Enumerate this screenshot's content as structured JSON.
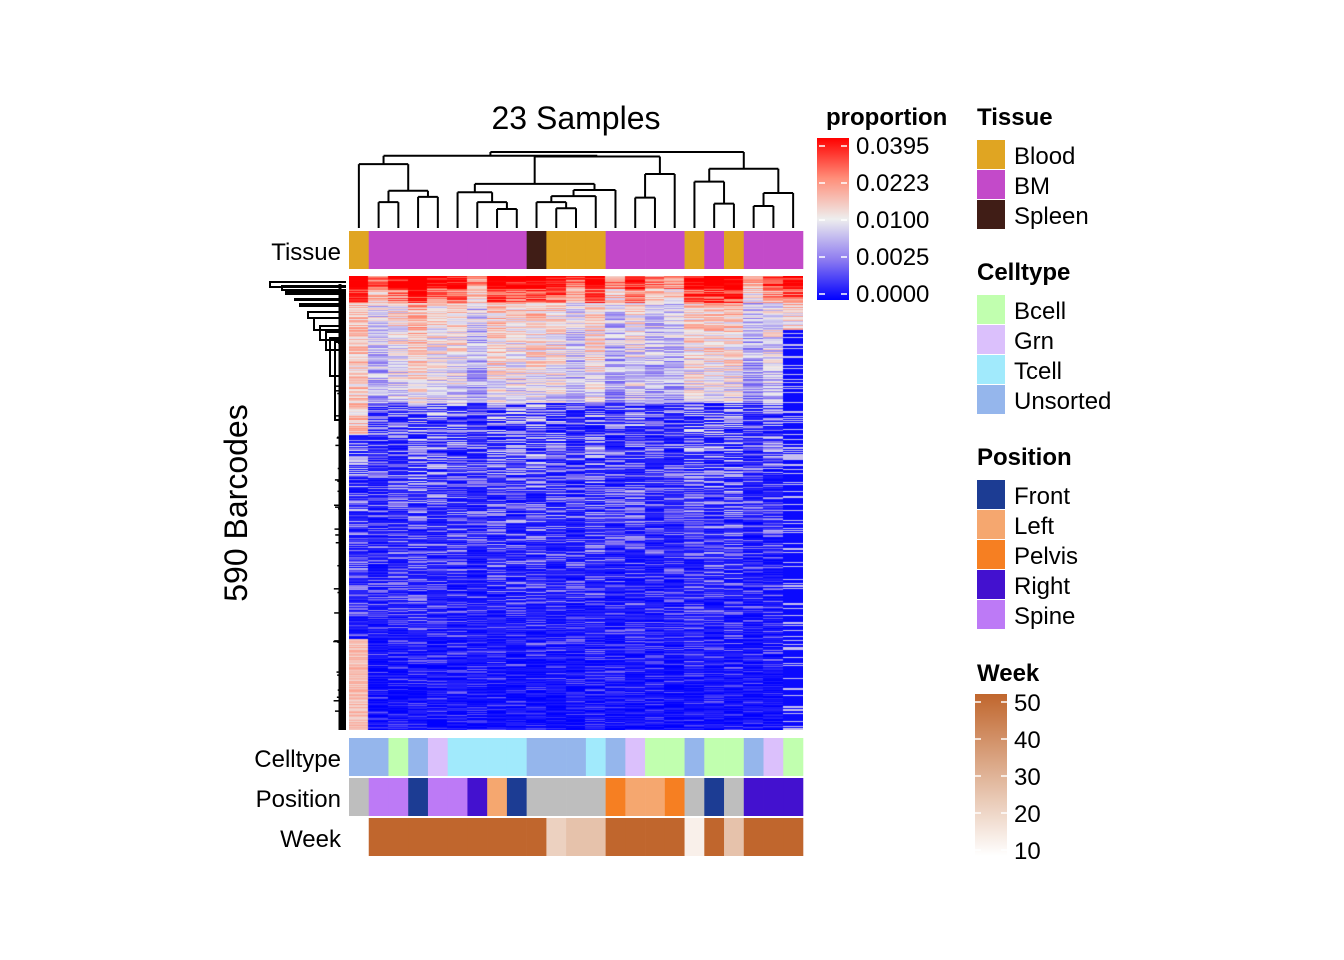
{
  "chart_data": {
    "type": "heatmap",
    "title": "23 Samples",
    "ylabel": "590 Barcodes",
    "n_samples": 23,
    "n_barcodes": 590,
    "colorbar": {
      "title": "proportion",
      "ticks": [
        "0.0395",
        "0.0223",
        "0.0100",
        "0.0025",
        "0.0000"
      ],
      "stops": [
        {
          "value": 0.0395,
          "color": "#FF0000"
        },
        {
          "value": 0.0223,
          "color": "#FF8F7A"
        },
        {
          "value": 0.01,
          "color": "#EEEEEE"
        },
        {
          "value": 0.0025,
          "color": "#8E7CF0"
        },
        {
          "value": 0.0,
          "color": "#0000FF"
        }
      ]
    },
    "annotations": {
      "top": [
        {
          "name": "Tissue",
          "label": "Tissue",
          "values": [
            "Blood",
            "BM",
            "BM",
            "BM",
            "BM",
            "BM",
            "BM",
            "BM",
            "BM",
            "Spleen",
            "Blood",
            "Blood",
            "Blood",
            "BM",
            "BM",
            "BM",
            "BM",
            "Blood",
            "BM",
            "Blood",
            "BM",
            "BM",
            "BM"
          ]
        }
      ],
      "bottom": [
        {
          "name": "Celltype",
          "label": "Celltype",
          "values": [
            "Unsorted",
            "Unsorted",
            "Bcell",
            "Unsorted",
            "Grn",
            "Tcell",
            "Tcell",
            "Tcell",
            "Tcell",
            "Unsorted",
            "Unsorted",
            "Unsorted",
            "Tcell",
            "Unsorted",
            "Grn",
            "Bcell",
            "Bcell",
            "Unsorted",
            "Bcell",
            "Bcell",
            "Unsorted",
            "Grn",
            "Bcell"
          ]
        },
        {
          "name": "Position",
          "label": "Position",
          "values": [
            null,
            "Spine",
            "Spine",
            "Front",
            "Spine",
            "Spine",
            "Right",
            "Left",
            "Front",
            null,
            null,
            null,
            null,
            "Pelvis",
            "Left",
            "Left",
            "Pelvis",
            null,
            "Front",
            null,
            "Right",
            "Right",
            "Right"
          ]
        },
        {
          "name": "Week",
          "label": "Week",
          "values": [
            null,
            50,
            50,
            50,
            50,
            50,
            50,
            50,
            50,
            50,
            22,
            26,
            26,
            50,
            50,
            50,
            50,
            14,
            50,
            26,
            50,
            50,
            50
          ]
        }
      ]
    },
    "legends": [
      {
        "title": "Tissue",
        "items": [
          {
            "label": "Blood",
            "color": "#E0A522"
          },
          {
            "label": "BM",
            "color": "#C34AC9"
          },
          {
            "label": "Spleen",
            "color": "#401D16"
          }
        ]
      },
      {
        "title": "Celltype",
        "items": [
          {
            "label": "Bcell",
            "color": "#C1FFAF"
          },
          {
            "label": "Grn",
            "color": "#DBC0FC"
          },
          {
            "label": "Tcell",
            "color": "#A1EAFC"
          },
          {
            "label": "Unsorted",
            "color": "#95B6EC"
          }
        ]
      },
      {
        "title": "Position",
        "items": [
          {
            "label": "Front",
            "color": "#1C3C93"
          },
          {
            "label": "Left",
            "color": "#F5A76F"
          },
          {
            "label": "Pelvis",
            "color": "#F67F22"
          },
          {
            "label": "Right",
            "color": "#4311CF"
          },
          {
            "label": "Spine",
            "color": "#BD7AF6"
          }
        ]
      },
      {
        "title": "Week",
        "type": "continuous",
        "ticks": [
          "50",
          "40",
          "30",
          "20",
          "10"
        ],
        "range": [
          10,
          50
        ],
        "low_color": "#FFFFFF",
        "high_color": "#C0662D"
      }
    ],
    "na_color": "#BEBEBE",
    "column_dendrogram": {
      "merge_heights_note": "merge height in relative units (leaf = 0, root = 1)",
      "tree": {
        "h": 1.0,
        "c": [
          {
            "h": 0.95,
            "c": [
              {
                "h": 0.84,
                "c": [
                  0,
                  {
                    "h": 0.49,
                    "c": [
                      {
                        "h": 0.34,
                        "c": [
                          1,
                          2
                        ]
                      },
                      {
                        "h": 0.41,
                        "c": [
                          3,
                          4
                        ]
                      }
                    ]
                  }
                ]
              },
              {
                "h": 0.94,
                "c": [
                  {
                    "h": 0.58,
                    "c": [
                      {
                        "h": 0.47,
                        "c": [
                          5,
                          {
                            "h": 0.34,
                            "c": [
                              6,
                              {
                                "h": 0.25,
                                "c": [
                                  7,
                                  8
                                ]
                              }
                            ]
                          }
                        ]
                      },
                      {
                        "h": 0.5,
                        "c": [
                          {
                            "h": 0.42,
                            "c": [
                              {
                                "h": 0.34,
                                "c": [
                                  9,
                                  {
                                    "h": 0.26,
                                    "c": [
                                      10,
                                      11
                                    ]
                                  }
                                ]
                              },
                              12
                            ]
                          },
                          13
                        ]
                      }
                    ]
                  },
                  {
                    "h": 0.71,
                    "c": [
                      {
                        "h": 0.4,
                        "c": [
                          14,
                          15
                        ]
                      },
                      16
                    ]
                  }
                ]
              }
            ]
          },
          {
            "h": 0.78,
            "c": [
              {
                "h": 0.61,
                "c": [
                  17,
                  {
                    "h": 0.32,
                    "c": [
                      18,
                      19
                    ]
                  }
                ]
              },
              {
                "h": 0.46,
                "c": [
                  {
                    "h": 0.29,
                    "c": [
                      20,
                      21
                    ]
                  },
                  22
                ]
              }
            ]
          }
        ]
      }
    }
  }
}
